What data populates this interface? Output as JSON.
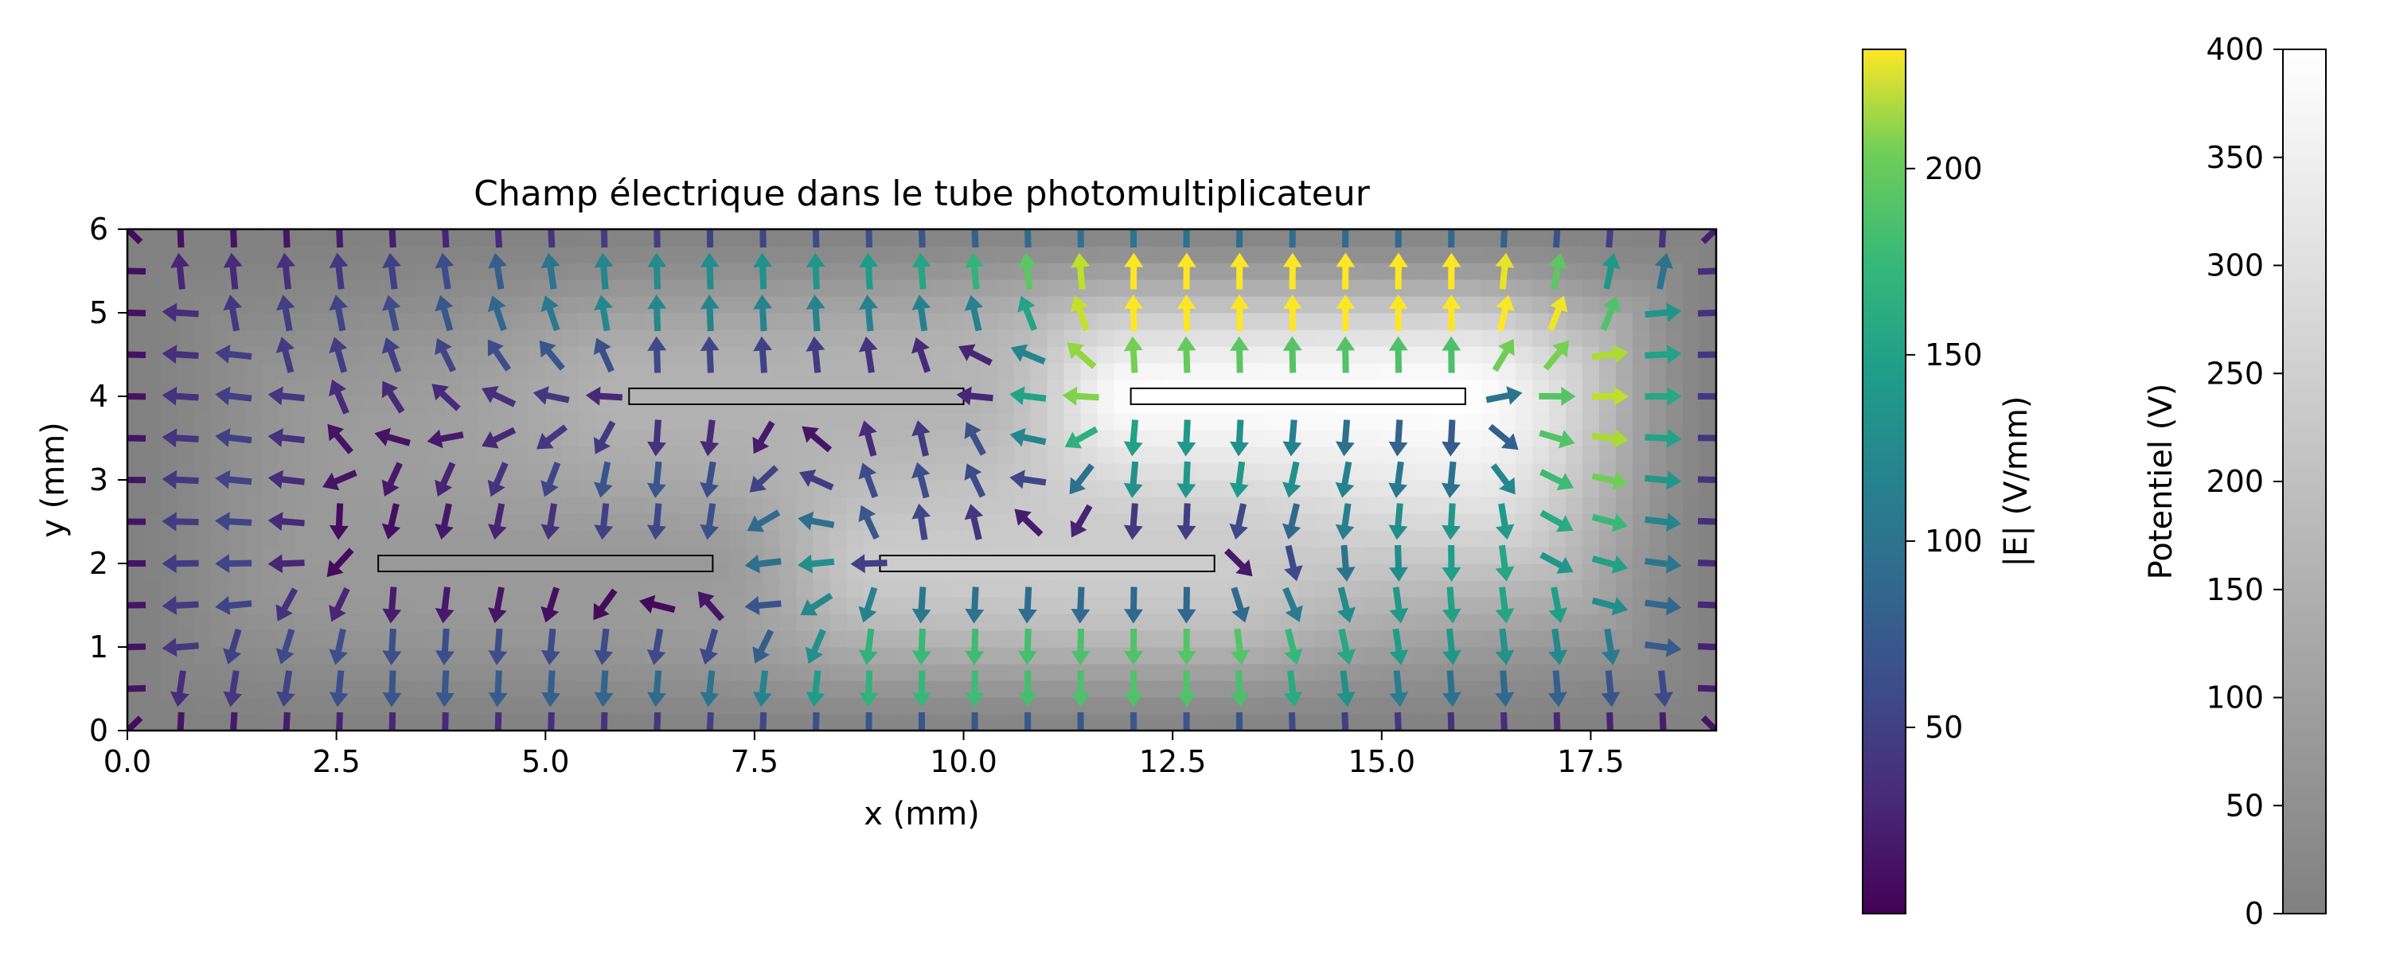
{
  "chart_data": {
    "type": "quiver",
    "title": "Champ électrique dans le tube photomultiplicateur",
    "xlabel": "x (mm)",
    "ylabel": "y (mm)",
    "xlim": [
      0,
      19
    ],
    "ylim": [
      0,
      6
    ],
    "x_ticks": [
      "0.0",
      "2.5",
      "5.0",
      "7.5",
      "10.0",
      "12.5",
      "15.0",
      "17.5"
    ],
    "y_ticks": [
      "0",
      "1",
      "2",
      "3",
      "4",
      "5",
      "6"
    ],
    "background": "potential field (grayscale)",
    "arrow_color": "field magnitude |E| (viridis)",
    "electrodes": [
      {
        "x": [
          3,
          7
        ],
        "y": 2,
        "potential": 80
      },
      {
        "x": [
          6,
          10
        ],
        "y": 4,
        "potential": 160
      },
      {
        "x": [
          9,
          13
        ],
        "y": 2,
        "potential": 240
      },
      {
        "x": [
          12,
          16
        ],
        "y": 4,
        "potential": 400
      }
    ],
    "colorbars": [
      {
        "label": "|E| (V/mm)",
        "cmap": "viridis",
        "range": [
          0,
          232
        ],
        "ticks": [
          "50",
          "100",
          "150",
          "200"
        ]
      },
      {
        "label": "Potentiel (V)",
        "cmap": "gray",
        "range": [
          0,
          400
        ],
        "ticks": [
          "0",
          "50",
          "100",
          "150",
          "200",
          "250",
          "300",
          "350",
          "400"
        ]
      }
    ],
    "colors": {
      "viridis_low": "#440154",
      "viridis_mid": "#21918c",
      "viridis_high": "#fde725",
      "gray_low": "#808080",
      "gray_high": "#ffffff"
    }
  }
}
